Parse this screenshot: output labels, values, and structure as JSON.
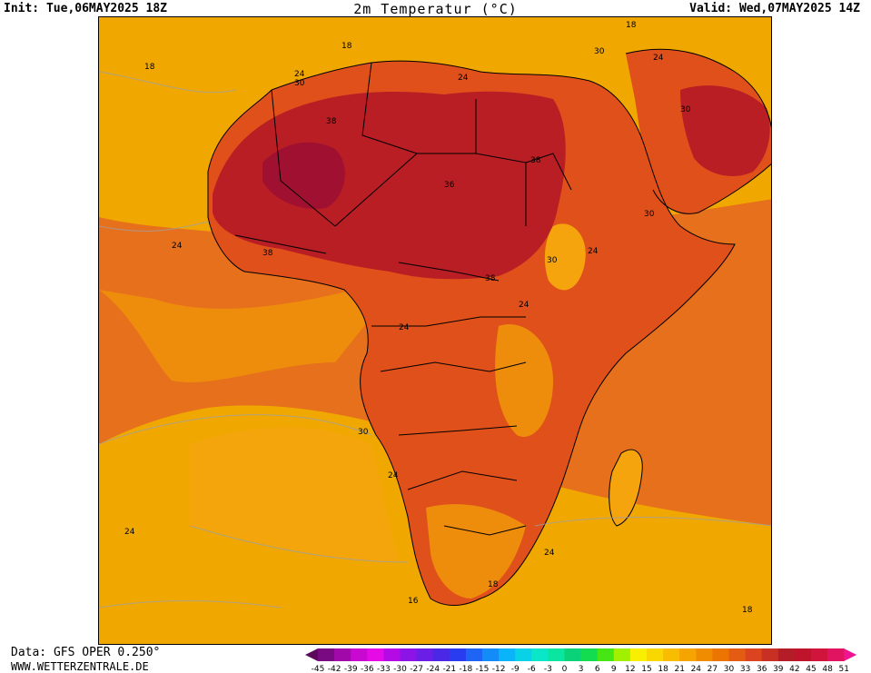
{
  "header": {
    "init": "Init: Tue,06MAY2025 18Z",
    "title": "2m Temperatur (°C)",
    "valid": "Valid: Wed,07MAY2025 14Z"
  },
  "footer": {
    "data_source": "Data: GFS OPER 0.250°",
    "website": "WWW.WETTERZENTRALE.DE"
  },
  "colors": {
    "ocean_cold": "#f0a800",
    "ocean_warm": "#e6701c",
    "ocean_mid": "#ee8c0c",
    "land_warm": "#e0501a",
    "land_hot": "#b81e24",
    "land_hottest": "#a01030",
    "highland": "#f5a40e",
    "border": "#000000",
    "contour": "#a0a0a0"
  },
  "contour_labels": [
    {
      "text": "18"
    },
    {
      "text": "18"
    },
    {
      "text": "24"
    },
    {
      "text": "30"
    },
    {
      "text": "24"
    },
    {
      "text": "18"
    },
    {
      "text": "30"
    },
    {
      "text": "24"
    },
    {
      "text": "38"
    },
    {
      "text": "36"
    },
    {
      "text": "38"
    },
    {
      "text": "30"
    },
    {
      "text": "24"
    },
    {
      "text": "30"
    },
    {
      "text": "38"
    },
    {
      "text": "38"
    },
    {
      "text": "24"
    },
    {
      "text": "30"
    },
    {
      "text": "24"
    },
    {
      "text": "24"
    },
    {
      "text": "30"
    },
    {
      "text": "24"
    },
    {
      "text": "24"
    },
    {
      "text": "24"
    },
    {
      "text": "18"
    },
    {
      "text": "16"
    },
    {
      "text": "18"
    }
  ],
  "legend": {
    "tick_labels": [
      "-45",
      "-42",
      "-39",
      "-36",
      "-33",
      "-30",
      "-27",
      "-24",
      "-21",
      "-18",
      "-15",
      "-12",
      "-9",
      "-6",
      "-3",
      "0",
      "3",
      "6",
      "9",
      "12",
      "15",
      "18",
      "21",
      "24",
      "27",
      "30",
      "33",
      "36",
      "39",
      "42",
      "45",
      "48",
      "51"
    ],
    "colors": [
      "#5a0a5a",
      "#7a0a82",
      "#a10aa8",
      "#c80ad0",
      "#e60ae6",
      "#b40ae6",
      "#8c14e6",
      "#6a1ee6",
      "#4a28e6",
      "#2a3cf0",
      "#1e64f5",
      "#148cf8",
      "#0ab4f8",
      "#0ad2e6",
      "#0ae6c8",
      "#0ae6a0",
      "#0ad278",
      "#14dc50",
      "#46e614",
      "#a0f000",
      "#f8f000",
      "#f8d800",
      "#f8bc00",
      "#f5a400",
      "#f08c00",
      "#ec7400",
      "#e45c14",
      "#dc4420",
      "#c83024",
      "#b41c28",
      "#c0142c",
      "#d0143c",
      "#e01460",
      "#f01490"
    ]
  }
}
